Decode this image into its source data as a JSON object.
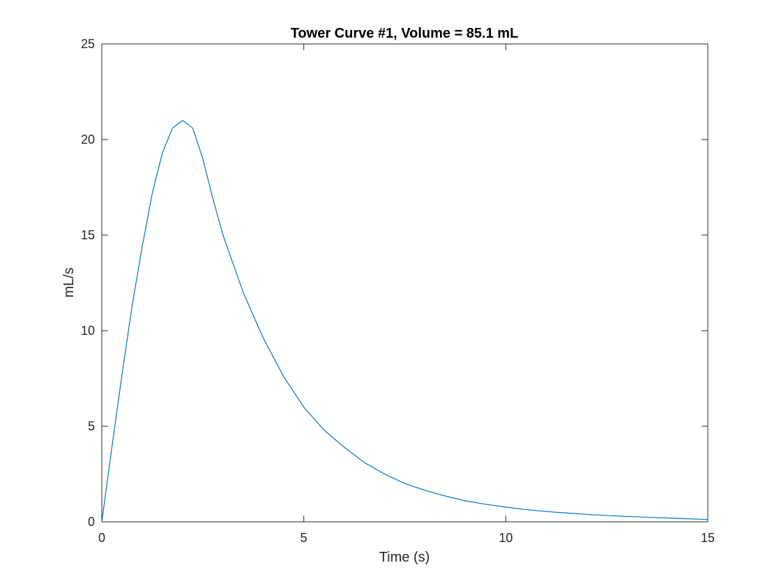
{
  "chart_data": {
    "type": "line",
    "title": "Tower Curve #1, Volume = 85.1 mL",
    "xlabel": "Time (s)",
    "ylabel": "mL/s",
    "xlim": [
      0,
      15
    ],
    "ylim": [
      0,
      25
    ],
    "xticks": [
      0,
      5,
      10,
      15
    ],
    "yticks": [
      0,
      5,
      10,
      15,
      20,
      25
    ],
    "xtick_labels": [
      "0",
      "5",
      "10",
      "15"
    ],
    "ytick_labels": [
      "0",
      "5",
      "10",
      "15",
      "20",
      "25"
    ],
    "grid": false,
    "line_color": "#0072BD",
    "series": [
      {
        "x": [
          0,
          0.25,
          0.5,
          0.75,
          1.0,
          1.25,
          1.5,
          1.75,
          2.0,
          2.25,
          2.5,
          2.75,
          3.0,
          3.5,
          4.0,
          4.5,
          5.0,
          5.5,
          6.0,
          6.5,
          7.0,
          7.5,
          8.0,
          8.5,
          9.0,
          9.5,
          10.0,
          10.5,
          11.0,
          11.5,
          12.0,
          12.5,
          13.0,
          13.5,
          14.0,
          14.5,
          15.0
        ],
        "values": [
          0,
          3.9,
          7.7,
          11.3,
          14.4,
          17.2,
          19.3,
          20.6,
          21.0,
          20.6,
          19.0,
          16.9,
          15.0,
          12.0,
          9.6,
          7.6,
          6.0,
          4.8,
          3.9,
          3.1,
          2.5,
          2.0,
          1.65,
          1.35,
          1.1,
          0.92,
          0.77,
          0.64,
          0.54,
          0.46,
          0.39,
          0.33,
          0.28,
          0.24,
          0.2,
          0.16,
          0.12
        ]
      }
    ]
  }
}
